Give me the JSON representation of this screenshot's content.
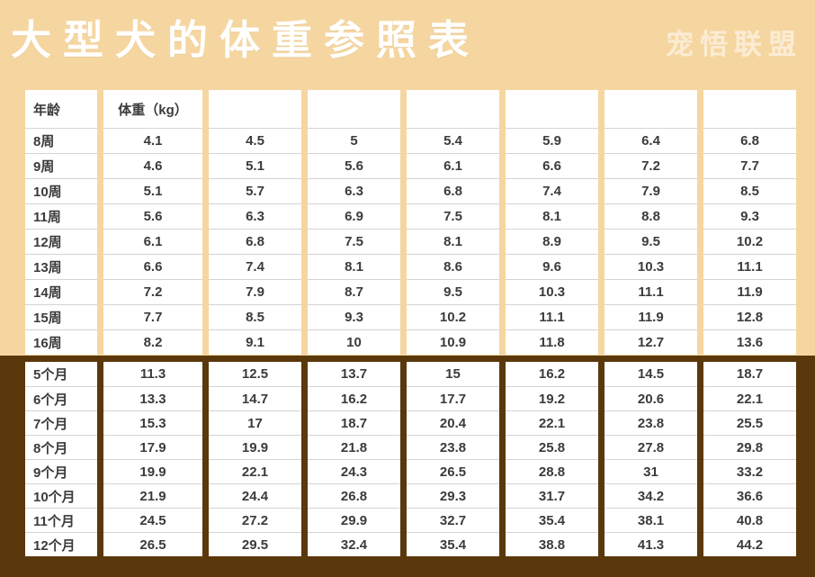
{
  "page": {
    "title": "大型犬的体重参照表",
    "watermark": "宠悟联盟",
    "colors": {
      "background_top": "#f6d6a0",
      "background_bottom": "#5a380c",
      "cell_background": "#ffffff",
      "text": "#3b3b3b",
      "title_text": "#ffffff"
    }
  },
  "chart_data": {
    "type": "table",
    "title": "大型犬的体重参照表",
    "header": {
      "age": "年龄",
      "weight": "体重（kg）"
    },
    "sections": [
      {
        "name": "weeks",
        "rows": [
          {
            "age": "8周",
            "values": [
              "4.1",
              "4.5",
              "5",
              "5.4",
              "5.9",
              "6.4",
              "6.8"
            ]
          },
          {
            "age": "9周",
            "values": [
              "4.6",
              "5.1",
              "5.6",
              "6.1",
              "6.6",
              "7.2",
              "7.7"
            ]
          },
          {
            "age": "10周",
            "values": [
              "5.1",
              "5.7",
              "6.3",
              "6.8",
              "7.4",
              "7.9",
              "8.5"
            ]
          },
          {
            "age": "11周",
            "values": [
              "5.6",
              "6.3",
              "6.9",
              "7.5",
              "8.1",
              "8.8",
              "9.3"
            ]
          },
          {
            "age": "12周",
            "values": [
              "6.1",
              "6.8",
              "7.5",
              "8.1",
              "8.9",
              "9.5",
              "10.2"
            ]
          },
          {
            "age": "13周",
            "values": [
              "6.6",
              "7.4",
              "8.1",
              "8.6",
              "9.6",
              "10.3",
              "11.1"
            ]
          },
          {
            "age": "14周",
            "values": [
              "7.2",
              "7.9",
              "8.7",
              "9.5",
              "10.3",
              "11.1",
              "11.9"
            ]
          },
          {
            "age": "15周",
            "values": [
              "7.7",
              "8.5",
              "9.3",
              "10.2",
              "11.1",
              "11.9",
              "12.8"
            ]
          },
          {
            "age": "16周",
            "values": [
              "8.2",
              "9.1",
              "10",
              "10.9",
              "11.8",
              "12.7",
              "13.6"
            ]
          }
        ]
      },
      {
        "name": "months",
        "rows": [
          {
            "age": "5个月",
            "values": [
              "11.3",
              "12.5",
              "13.7",
              "15",
              "16.2",
              "14.5",
              "18.7"
            ]
          },
          {
            "age": "6个月",
            "values": [
              "13.3",
              "14.7",
              "16.2",
              "17.7",
              "19.2",
              "20.6",
              "22.1"
            ]
          },
          {
            "age": "7个月",
            "values": [
              "15.3",
              "17",
              "18.7",
              "20.4",
              "22.1",
              "23.8",
              "25.5"
            ]
          },
          {
            "age": "8个月",
            "values": [
              "17.9",
              "19.9",
              "21.8",
              "23.8",
              "25.8",
              "27.8",
              "29.8"
            ]
          },
          {
            "age": "9个月",
            "values": [
              "19.9",
              "22.1",
              "24.3",
              "26.5",
              "28.8",
              "31",
              "33.2"
            ]
          },
          {
            "age": "10个月",
            "values": [
              "21.9",
              "24.4",
              "26.8",
              "29.3",
              "31.7",
              "34.2",
              "36.6"
            ]
          },
          {
            "age": "11个月",
            "values": [
              "24.5",
              "27.2",
              "29.9",
              "32.7",
              "35.4",
              "38.1",
              "40.8"
            ]
          },
          {
            "age": "12个月",
            "values": [
              "26.5",
              "29.5",
              "32.4",
              "35.4",
              "38.8",
              "41.3",
              "44.2"
            ]
          }
        ]
      }
    ]
  }
}
